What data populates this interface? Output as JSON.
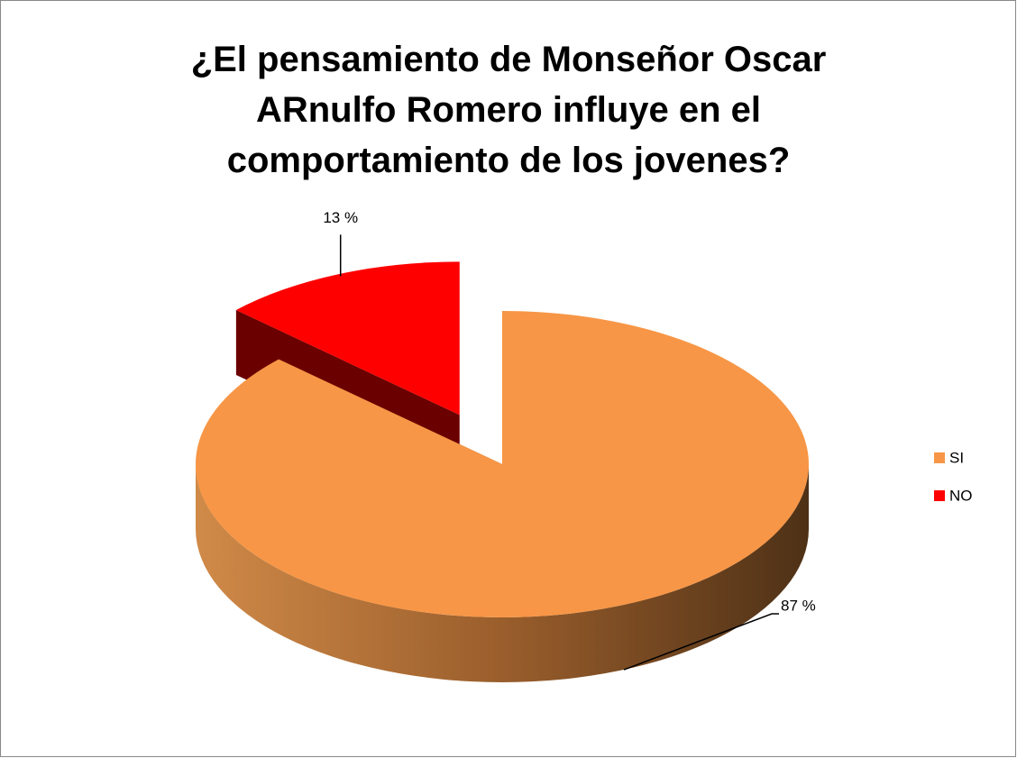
{
  "chart_data": {
    "type": "pie",
    "title": "¿El pensamiento de Monseñor Oscar ARnulfo Romero influye en el comportamiento de los jovenes?",
    "categories": [
      "SI",
      "NO"
    ],
    "values": [
      87,
      13
    ],
    "value_labels": [
      "87 %",
      "13 %"
    ],
    "colors": [
      "#f79646",
      "#ff0000"
    ],
    "legend": "right"
  }
}
